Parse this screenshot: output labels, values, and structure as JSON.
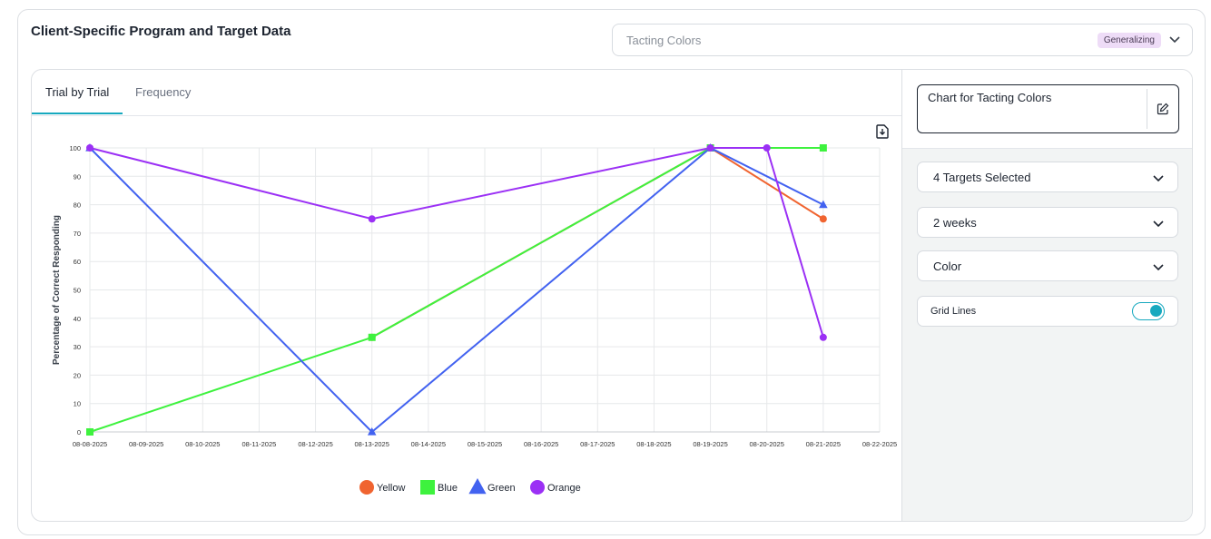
{
  "page": {
    "title": "Client-Specific Program and Target Data"
  },
  "program_select": {
    "value": "Tacting Colors",
    "badge": "Generalizing",
    "badge_color": "#eedcf7"
  },
  "tabs": [
    {
      "label": "Trial by Trial",
      "active": true
    },
    {
      "label": "Frequency",
      "active": false
    }
  ],
  "sidebar": {
    "chart_name": "Chart for Tacting Colors",
    "targets_select": "4 Targets Selected",
    "range_select": "2 weeks",
    "color_select": "Color",
    "grid_lines_label": "Grid Lines",
    "grid_lines_on": true,
    "accent_color": "#17a9bf"
  },
  "icons": [
    "download-icon",
    "edit-icon",
    "chevron-down-icon"
  ],
  "chart_data": {
    "type": "line",
    "ylabel": "Percentage of Correct Responding",
    "xlabel": "",
    "ylim": [
      0,
      100
    ],
    "yticks": [
      0,
      10,
      20,
      30,
      40,
      50,
      60,
      70,
      80,
      90,
      100
    ],
    "x": [
      "08-08-2025",
      "08-09-2025",
      "08-10-2025",
      "08-11-2025",
      "08-12-2025",
      "08-13-2025",
      "08-14-2025",
      "08-15-2025",
      "08-16-2025",
      "08-17-2025",
      "08-18-2025",
      "08-19-2025",
      "08-20-2025",
      "08-21-2025",
      "08-22-2025"
    ],
    "grid": true,
    "legend_position": "bottom",
    "series": [
      {
        "name": "Yellow",
        "color": "#f06430",
        "marker": "circle",
        "points": [
          {
            "x": "08-13-2025",
            "y": 33.3
          },
          {
            "x": "08-19-2025",
            "y": 100
          },
          {
            "x": "08-21-2025",
            "y": 75
          }
        ]
      },
      {
        "name": "Blue",
        "color": "#3ef23e",
        "marker": "square",
        "points": [
          {
            "x": "08-08-2025",
            "y": 0
          },
          {
            "x": "08-13-2025",
            "y": 33.3
          },
          {
            "x": "08-19-2025",
            "y": 100
          },
          {
            "x": "08-21-2025",
            "y": 100
          }
        ]
      },
      {
        "name": "Green",
        "color": "#4262f0",
        "marker": "triangle",
        "points": [
          {
            "x": "08-08-2025",
            "y": 100
          },
          {
            "x": "08-13-2025",
            "y": 0
          },
          {
            "x": "08-19-2025",
            "y": 100
          },
          {
            "x": "08-21-2025",
            "y": 80
          }
        ]
      },
      {
        "name": "Orange",
        "color": "#9b30f5",
        "marker": "circle",
        "points": [
          {
            "x": "08-08-2025",
            "y": 100
          },
          {
            "x": "08-13-2025",
            "y": 75
          },
          {
            "x": "08-19-2025",
            "y": 100
          },
          {
            "x": "08-20-2025",
            "y": 100
          },
          {
            "x": "08-21-2025",
            "y": 33.3
          }
        ]
      }
    ]
  }
}
